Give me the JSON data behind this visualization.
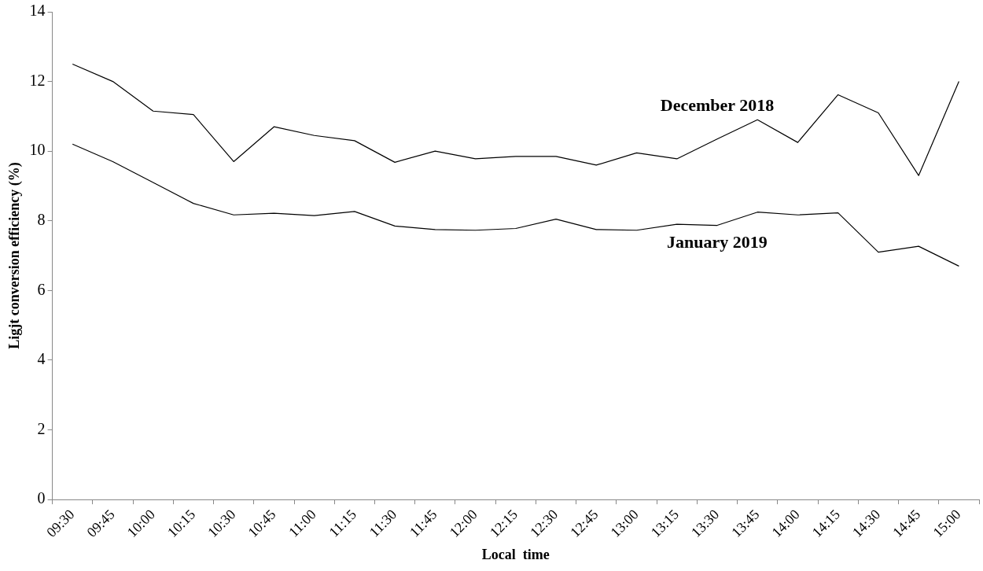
{
  "chart_data": {
    "type": "line",
    "xlabel": "Local  time",
    "ylabel": "Ligjt conversion efficiency (%)",
    "categories": [
      "09:30",
      "09:45",
      "10:00",
      "10:15",
      "10:30",
      "10:45",
      "11:00",
      "11:15",
      "11:30",
      "11:45",
      "12:00",
      "12:15",
      "12:30",
      "12:45",
      "13:00",
      "13:15",
      "13:30",
      "13:45",
      "14:00",
      "14:15",
      "14:30",
      "14:45",
      "15:00"
    ],
    "series": [
      {
        "name": "December 2018",
        "color": "#000000",
        "values": [
          12.5,
          12.0,
          11.15,
          11.05,
          9.7,
          10.7,
          10.45,
          10.3,
          9.68,
          10.0,
          9.78,
          9.85,
          9.85,
          9.6,
          9.95,
          9.78,
          10.35,
          10.9,
          10.25,
          11.62,
          11.1,
          9.3,
          12.0
        ]
      },
      {
        "name": "January 2019",
        "color": "#000000",
        "values": [
          10.2,
          9.7,
          9.1,
          8.5,
          8.17,
          8.22,
          8.15,
          8.27,
          7.85,
          7.75,
          7.73,
          7.78,
          8.05,
          7.75,
          7.73,
          7.9,
          7.87,
          8.25,
          8.17,
          8.23,
          7.1,
          7.27,
          6.7
        ]
      }
    ],
    "ylim": [
      0,
      14
    ],
    "yticks": [
      0,
      2,
      4,
      6,
      8,
      10,
      12,
      14
    ],
    "grid": false,
    "legend": false,
    "marker": "none",
    "line_style": "solid"
  }
}
